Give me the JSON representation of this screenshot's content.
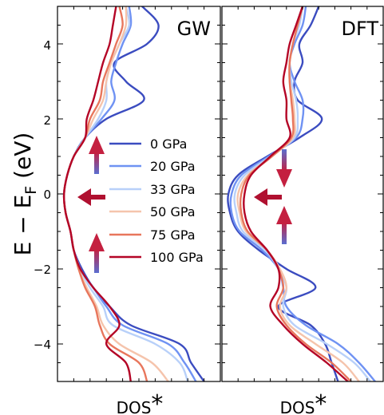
{
  "chart_data": {
    "type": "line",
    "ylabel_main": "E − E",
    "ylabel_sub": "F",
    "ylabel_unit": " (eV)",
    "xlabel_main": "DOS",
    "xlabel_star": "*",
    "ylim": [
      -5,
      5
    ],
    "yticks": [
      4,
      2,
      0,
      -2,
      -4
    ],
    "ytick_labels": [
      "4",
      "2",
      "0",
      "−2",
      "−4"
    ],
    "grid": false,
    "legend_position": "center",
    "series_names": [
      "0 GPa",
      "20 GPa",
      "33 GPa",
      "50 GPa",
      "75 GPa",
      "100 GPa"
    ],
    "colors": [
      "#3b4cc0",
      "#6f92f3",
      "#b8d0f9",
      "#f5c4ac",
      "#e8765c",
      "#b40426"
    ],
    "panels": [
      {
        "title": "GW",
        "y": [
          -5,
          -4.5,
          -4,
          -3.5,
          -3,
          -2.5,
          -2,
          -1.5,
          -1,
          -0.5,
          0,
          0.5,
          1,
          1.5,
          2,
          2.5,
          3,
          3.5,
          4,
          4.5,
          5
        ],
        "series": [
          {
            "name": "0 GPa",
            "values": [
              0.9,
              0.82,
              0.75,
              0.45,
              0.32,
              0.22,
              0.15,
              0.1,
              0.08,
              0.05,
              0.04,
              0.06,
              0.1,
              0.17,
              0.3,
              0.53,
              0.42,
              0.35,
              0.55,
              0.62,
              0.52
            ]
          },
          {
            "name": "20 GPa",
            "values": [
              0.85,
              0.78,
              0.68,
              0.4,
              0.3,
              0.22,
              0.14,
              0.1,
              0.08,
              0.05,
              0.04,
              0.06,
              0.1,
              0.17,
              0.27,
              0.35,
              0.33,
              0.36,
              0.4,
              0.45,
              0.44
            ]
          },
          {
            "name": "33 GPa",
            "values": [
              0.8,
              0.75,
              0.6,
              0.34,
              0.28,
              0.2,
              0.14,
              0.1,
              0.08,
              0.05,
              0.04,
              0.06,
              0.1,
              0.17,
              0.25,
              0.3,
              0.3,
              0.33,
              0.38,
              0.44,
              0.42
            ]
          },
          {
            "name": "50 GPa",
            "values": [
              0.68,
              0.58,
              0.38,
              0.28,
              0.24,
              0.18,
              0.13,
              0.1,
              0.08,
              0.05,
              0.04,
              0.06,
              0.1,
              0.17,
              0.22,
              0.28,
              0.3,
              0.33,
              0.38,
              0.42,
              0.42
            ]
          },
          {
            "name": "75 GPa",
            "values": [
              0.55,
              0.5,
              0.32,
              0.26,
              0.23,
              0.17,
              0.13,
              0.1,
              0.08,
              0.05,
              0.04,
              0.06,
              0.1,
              0.17,
              0.2,
              0.26,
              0.28,
              0.32,
              0.36,
              0.4,
              0.38
            ]
          },
          {
            "name": "100 GPa",
            "values": [
              0.45,
              0.42,
              0.3,
              0.38,
              0.32,
              0.22,
              0.14,
              0.1,
              0.08,
              0.05,
              0.04,
              0.06,
              0.1,
              0.17,
              0.18,
              0.22,
              0.25,
              0.28,
              0.32,
              0.34,
              0.36
            ]
          }
        ]
      },
      {
        "title": "DFT",
        "y": [
          -5,
          -4.5,
          -4,
          -3.5,
          -3,
          -2.5,
          -2,
          -1.5,
          -1,
          -0.5,
          0,
          0.5,
          1,
          1.5,
          2,
          2.5,
          3,
          3.5,
          4,
          4.5,
          5
        ],
        "series": [
          {
            "name": "0 GPa",
            "values": [
              0.72,
              0.68,
              0.64,
              0.55,
              0.35,
              0.58,
              0.4,
              0.23,
              0.1,
              0.05,
              0.04,
              0.1,
              0.28,
              0.48,
              0.62,
              0.47,
              0.45,
              0.5,
              0.48,
              0.55,
              0.6
            ]
          },
          {
            "name": "20 GPa",
            "values": [
              0.95,
              0.85,
              0.72,
              0.52,
              0.4,
              0.38,
              0.35,
              0.25,
              0.11,
              0.06,
              0.06,
              0.12,
              0.29,
              0.46,
              0.5,
              0.5,
              0.45,
              0.42,
              0.45,
              0.5,
              0.52
            ]
          },
          {
            "name": "33 GPa",
            "values": [
              0.92,
              0.82,
              0.65,
              0.45,
              0.38,
              0.4,
              0.35,
              0.27,
              0.13,
              0.09,
              0.08,
              0.14,
              0.3,
              0.45,
              0.47,
              0.46,
              0.43,
              0.42,
              0.44,
              0.48,
              0.5
            ]
          },
          {
            "name": "50 GPa",
            "values": [
              0.85,
              0.75,
              0.58,
              0.42,
              0.36,
              0.4,
              0.36,
              0.28,
              0.15,
              0.11,
              0.1,
              0.16,
              0.31,
              0.44,
              0.45,
              0.44,
              0.42,
              0.42,
              0.44,
              0.47,
              0.5
            ]
          },
          {
            "name": "75 GPa",
            "values": [
              0.8,
              0.68,
              0.52,
              0.4,
              0.34,
              0.38,
              0.35,
              0.28,
              0.16,
              0.12,
              0.12,
              0.17,
              0.31,
              0.43,
              0.44,
              0.43,
              0.42,
              0.42,
              0.44,
              0.47,
              0.5
            ]
          },
          {
            "name": "100 GPa",
            "values": [
              0.78,
              0.65,
              0.5,
              0.38,
              0.3,
              0.35,
              0.35,
              0.28,
              0.18,
              0.14,
              0.14,
              0.18,
              0.3,
              0.42,
              0.4,
              0.4,
              0.38,
              0.4,
              0.42,
              0.46,
              0.5
            ]
          }
        ]
      }
    ]
  }
}
